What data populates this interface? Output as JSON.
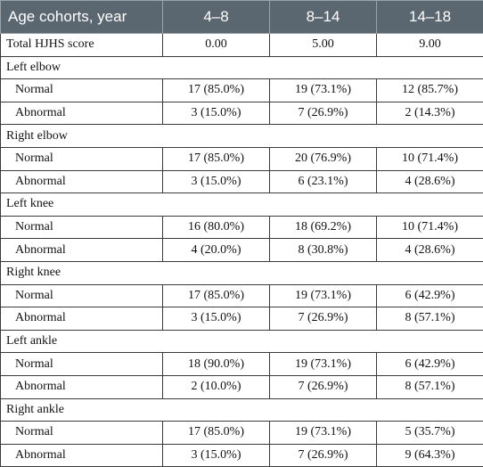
{
  "table": {
    "headers": [
      "Age cohorts, year",
      "4–8",
      "8–14",
      "14–18"
    ],
    "total": {
      "label": "Total HJHS score",
      "values": [
        "0.00",
        "5.00",
        "9.00"
      ]
    },
    "groups": [
      {
        "name": "Left elbow",
        "rows": [
          {
            "label": "Normal",
            "values": [
              "17 (85.0%)",
              "19 (73.1%)",
              "12 (85.7%)"
            ]
          },
          {
            "label": "Abnormal",
            "values": [
              "3 (15.0%)",
              "7 (26.9%)",
              "2 (14.3%)"
            ]
          }
        ]
      },
      {
        "name": "Right elbow",
        "rows": [
          {
            "label": "Normal",
            "values": [
              "17 (85.0%)",
              "20 (76.9%)",
              "10 (71.4%)"
            ]
          },
          {
            "label": "Abnormal",
            "values": [
              "3 (15.0%)",
              "6 (23.1%)",
              "4 (28.6%)"
            ]
          }
        ]
      },
      {
        "name": "Left knee",
        "rows": [
          {
            "label": "Normal",
            "values": [
              "16 (80.0%)",
              "18 (69.2%)",
              "10 (71.4%)"
            ]
          },
          {
            "label": "Abnormal",
            "values": [
              "4 (20.0%)",
              "8 (30.8%)",
              "4 (28.6%)"
            ]
          }
        ]
      },
      {
        "name": "Right knee",
        "rows": [
          {
            "label": "Normal",
            "values": [
              "17 (85.0%)",
              "19 (73.1%)",
              "6 (42.9%)"
            ]
          },
          {
            "label": "Abnormal",
            "values": [
              "3 (15.0%)",
              "7 (26.9%)",
              "8 (57.1%)"
            ]
          }
        ]
      },
      {
        "name": "Left ankle",
        "rows": [
          {
            "label": "Normal",
            "values": [
              "18 (90.0%)",
              "19 (73.1%)",
              "6 (42.9%)"
            ]
          },
          {
            "label": "Abnormal",
            "values": [
              "2 (10.0%)",
              "7 (26.9%)",
              "8 (57.1%)"
            ]
          }
        ]
      },
      {
        "name": "Right ankle",
        "rows": [
          {
            "label": "Normal",
            "values": [
              "17 (85.0%)",
              "19 (73.1%)",
              "5 (35.7%)"
            ]
          },
          {
            "label": "Abnormal",
            "values": [
              "3 (15.0%)",
              "7 (26.9%)",
              "9 (64.3%)"
            ]
          }
        ]
      }
    ]
  }
}
